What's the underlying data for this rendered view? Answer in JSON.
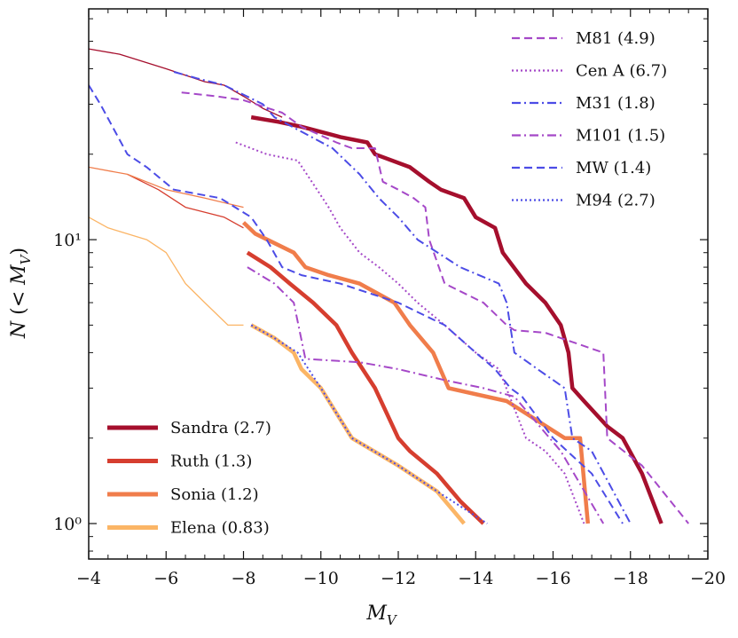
{
  "chart_data": {
    "type": "line",
    "title": "",
    "xlabel": "M_V",
    "ylabel": "N (< M_V)",
    "x_reversed": true,
    "xlim": [
      -4,
      -20
    ],
    "ylim": [
      0.75,
      65
    ],
    "yscale": "log",
    "x_ticks": [
      -4,
      -6,
      -8,
      -10,
      -12,
      -14,
      -16,
      -18,
      -20
    ],
    "x_tick_labels": [
      "−4",
      "−6",
      "−8",
      "−10",
      "−12",
      "−14",
      "−16",
      "−18",
      "−20"
    ],
    "y_ticks": [
      1,
      10
    ],
    "y_tick_labels": [
      "10⁰",
      "10¹"
    ],
    "ylabel_parts": [
      "N",
      " (< ",
      "M",
      "V",
      ")"
    ],
    "xlabel_parts": [
      "M",
      "V"
    ],
    "legend_top_right": [
      {
        "label": "M81 (4.9)",
        "color": "#a548c8",
        "dash": "9,5"
      },
      {
        "label": "Cen A (6.7)",
        "color": "#a548c8",
        "dash": "2,3"
      },
      {
        "label": "M31 (1.8)",
        "color": "#4c4ce6",
        "dash": "10,4,2,4"
      },
      {
        "label": "M101 (1.5)",
        "color": "#a548c8",
        "dash": "10,4,2,4"
      },
      {
        "label": "MW (1.4)",
        "color": "#4c4ce6",
        "dash": "9,5"
      },
      {
        "label": "M94 (2.7)",
        "color": "#4c4ce6",
        "dash": "2,3"
      }
    ],
    "legend_bottom_left": [
      {
        "label": "Sandra (2.7)",
        "color": "#a50f2d"
      },
      {
        "label": "Ruth (1.3)",
        "color": "#d63e2f"
      },
      {
        "label": "Sonia (1.2)",
        "color": "#f07d4b"
      },
      {
        "label": "Elena (0.83)",
        "color": "#fbb566"
      }
    ],
    "series": [
      {
        "name": "Sandra (2.7)",
        "color": "#a50f2d",
        "width": 4.5,
        "dash": "",
        "x": [
          -8.2,
          -8.9,
          -9.5,
          -10.5,
          -11.2,
          -11.4,
          -12.3,
          -12.8,
          -13.1,
          -13.7,
          -14.0,
          -14.5,
          -14.7,
          -15.3,
          -15.8,
          -16.2,
          -16.4,
          -16.5,
          -16.8,
          -17.4,
          -17.8,
          -18.3,
          -18.8
        ],
        "y": [
          27,
          26,
          25,
          23,
          22,
          20,
          18,
          16,
          15,
          14,
          12,
          11,
          9,
          7,
          6,
          5,
          4,
          3,
          2.7,
          2.2,
          2,
          1.5,
          1
        ]
      },
      {
        "name": "Ruth (1.3)",
        "color": "#d63e2f",
        "width": 4.5,
        "dash": "",
        "x": [
          -8.1,
          -8.7,
          -9.2,
          -9.8,
          -10.4,
          -10.8,
          -11.4,
          -12.0,
          -12.3,
          -13.0,
          -13.6,
          -14.2
        ],
        "y": [
          9,
          8,
          7,
          6,
          5,
          4,
          3,
          2,
          1.8,
          1.5,
          1.2,
          1
        ]
      },
      {
        "name": "Sonia (1.2)",
        "color": "#f07d4b",
        "width": 4.5,
        "dash": "",
        "x": [
          -8.0,
          -8.3,
          -9.3,
          -9.6,
          -10.2,
          -11.0,
          -11.9,
          -12.3,
          -12.9,
          -13.3,
          -14.8,
          -16.3,
          -16.7,
          -16.9
        ],
        "y": [
          11.5,
          10.5,
          9,
          8,
          7.5,
          7,
          6,
          5,
          4,
          3,
          2.7,
          2,
          2,
          1
        ]
      },
      {
        "name": "Elena (0.83)",
        "color": "#fbb566",
        "width": 4.5,
        "dash": "",
        "x": [
          -8.2,
          -8.8,
          -9.3,
          -9.5,
          -10.0,
          -10.8,
          -12.0,
          -13.0,
          -13.7
        ],
        "y": [
          5,
          4.5,
          4,
          3.5,
          3,
          2,
          1.6,
          1.3,
          1
        ]
      },
      {
        "name": "Sandra (2.7) faint",
        "color": "#a50f2d",
        "width": 1.3,
        "dash": "",
        "x": [
          -4.0,
          -4.8,
          -6.0,
          -7.0,
          -7.5,
          -8.0,
          -8.5,
          -9.0
        ],
        "y": [
          47,
          45,
          40,
          36,
          35,
          32,
          29,
          27
        ]
      },
      {
        "name": "Ruth (1.3) faint",
        "color": "#d63e2f",
        "width": 1.3,
        "dash": "",
        "x": [
          -5.0,
          -5.8,
          -6.5,
          -7.5,
          -8.0
        ],
        "y": [
          17,
          15,
          13,
          12,
          11
        ]
      },
      {
        "name": "Sonia (1.2) faint",
        "color": "#f07d4b",
        "width": 1.3,
        "dash": "",
        "x": [
          -4.0,
          -5.0,
          -6.0,
          -7.0,
          -8.0
        ],
        "y": [
          18,
          17,
          15,
          14,
          13
        ]
      },
      {
        "name": "Elena (0.83) faint",
        "color": "#fbb566",
        "width": 1.3,
        "dash": "",
        "x": [
          -4.0,
          -4.5,
          -5.5,
          -6.0,
          -6.5,
          -7.0,
          -7.6,
          -8.0
        ],
        "y": [
          12,
          11,
          10,
          9,
          7,
          6,
          5,
          5
        ]
      },
      {
        "name": "M81 (4.9)",
        "color": "#a548c8",
        "width": 2,
        "dash": "9,5",
        "x": [
          -6.4,
          -7.3,
          -8.0,
          -9.0,
          -9.5,
          -10.4,
          -10.8,
          -11.4,
          -11.6,
          -12.0,
          -12.4,
          -12.7,
          -12.8,
          -13.2,
          -14.2,
          -14.8,
          -15.0,
          -15.8,
          -17.3,
          -17.4,
          -18.3,
          -19.5
        ],
        "y": [
          33,
          32,
          31,
          28,
          25,
          22,
          21,
          21,
          16,
          15,
          14,
          13,
          10,
          7,
          6,
          5,
          4.8,
          4.7,
          4,
          2,
          1.6,
          1
        ]
      },
      {
        "name": "Cen A (6.7)",
        "color": "#a548c8",
        "width": 2,
        "dash": "2,3",
        "x": [
          -7.8,
          -8.6,
          -9.4,
          -9.9,
          -10.2,
          -10.5,
          -11.0,
          -11.5,
          -12.0,
          -12.5,
          -13.2,
          -14.0,
          -14.6,
          -15.3,
          -15.8,
          -16.3,
          -16.8
        ],
        "y": [
          22,
          20,
          19,
          15,
          13,
          11,
          9,
          8,
          7,
          6,
          5,
          4,
          3.5,
          2,
          1.8,
          1.5,
          1
        ]
      },
      {
        "name": "M31 (1.8)",
        "color": "#4c4ce6",
        "width": 2,
        "dash": "10,4,2,4",
        "x": [
          -6.2,
          -6.8,
          -7.5,
          -8.5,
          -8.8,
          -9.5,
          -10.3,
          -11.0,
          -11.5,
          -12.0,
          -12.5,
          -13.6,
          -14.6,
          -14.8,
          -15.0,
          -15.6,
          -16.3,
          -16.5,
          -17.0,
          -18.0
        ],
        "y": [
          39,
          37,
          35,
          30,
          27,
          24,
          21,
          17,
          14,
          12,
          10,
          8,
          7,
          6,
          4,
          3.5,
          3,
          2,
          1.8,
          1
        ]
      },
      {
        "name": "M101 (1.5)",
        "color": "#a548c8",
        "width": 2,
        "dash": "10,4,2,4",
        "x": [
          -8.1,
          -8.8,
          -9.3,
          -9.6,
          -11.0,
          -12.0,
          -13.2,
          -14.2,
          -15.0,
          -16.2,
          -17.3
        ],
        "y": [
          8,
          7,
          6,
          3.8,
          3.7,
          3.5,
          3.2,
          3,
          2.8,
          1.8,
          1
        ]
      },
      {
        "name": "MW (1.4)",
        "color": "#4c4ce6",
        "width": 2,
        "dash": "9,5",
        "x": [
          -4.0,
          -4.3,
          -5.0,
          -5.5,
          -6.2,
          -7.4,
          -8.2,
          -8.6,
          -9.0,
          -9.5,
          -10.5,
          -12.0,
          -13.2,
          -14.0,
          -14.5,
          -14.9,
          -15.2,
          -16.0,
          -17.0,
          -17.8
        ],
        "y": [
          35,
          30,
          20,
          18,
          15,
          14,
          12,
          10,
          8,
          7.5,
          7,
          6,
          5,
          4,
          3.5,
          3,
          2.8,
          2,
          1.5,
          1
        ]
      },
      {
        "name": "M94 (2.7)",
        "color": "#4c4ce6",
        "width": 2,
        "dash": "2,3",
        "x": [
          -8.2,
          -8.8,
          -9.4,
          -10.0,
          -10.8,
          -12.0,
          -13.0,
          -14.3
        ],
        "y": [
          5,
          4.5,
          4,
          3,
          2,
          1.6,
          1.3,
          1
        ]
      }
    ]
  }
}
